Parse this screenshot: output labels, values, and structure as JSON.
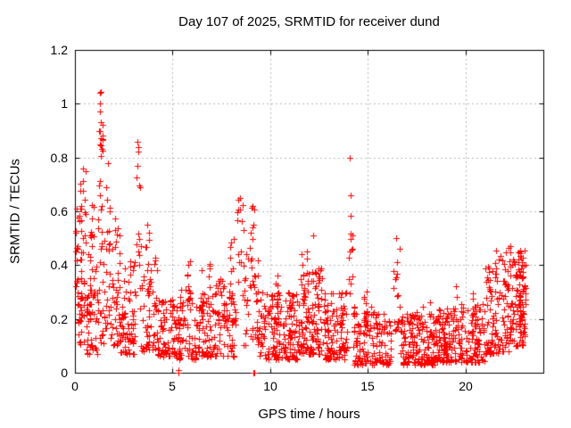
{
  "figure": {
    "background": "#ffffff",
    "text_color": "#000000"
  },
  "chart_data": {
    "type": "scatter",
    "title": "Day 107 of 2025, SRMTID for receiver dund",
    "xlabel": "GPS time / hours",
    "ylabel": "SRMTID / TECUs",
    "xlim": [
      0,
      24
    ],
    "ylim": [
      0,
      1.2
    ],
    "xticks": [
      0,
      5,
      10,
      15,
      20
    ],
    "xtick_labels": [
      "0",
      "5",
      "10",
      "15",
      "20"
    ],
    "yticks": [
      0,
      0.2,
      0.4,
      0.6,
      0.8,
      1,
      1.2
    ],
    "ytick_labels": [
      "0",
      "0.2",
      "0.4",
      "0.6",
      "0.8",
      "1",
      "1.2"
    ],
    "grid": true,
    "grid_style": "dashed",
    "grid_color": "#b9b9b9",
    "frame_color": "#000000",
    "legend": "none",
    "marker": {
      "shape": "plus",
      "color": "#ff0000",
      "size": 7
    },
    "x_data_range": [
      0.05,
      23.1
    ],
    "notable_points": [
      [
        0.42,
        0.76
      ],
      [
        1.28,
        1.04
      ],
      [
        1.3,
        1.0
      ],
      [
        1.29,
        0.97
      ],
      [
        1.34,
        0.93
      ],
      [
        1.27,
        0.9
      ],
      [
        1.4,
        0.87
      ],
      [
        1.68,
        0.78
      ],
      [
        3.22,
        0.86
      ],
      [
        3.26,
        0.84
      ],
      [
        5.28,
        0.0
      ],
      [
        5.32,
        0.01
      ],
      [
        8.45,
        0.65
      ],
      [
        9.13,
        0.0
      ],
      [
        9.19,
        0.0
      ],
      [
        12.2,
        0.51
      ],
      [
        14.1,
        0.8
      ],
      [
        14.12,
        0.66
      ],
      [
        16.45,
        0.5
      ],
      [
        22.3,
        0.47
      ]
    ],
    "density_clusters": [
      [
        0.05,
        0.35,
        0.18,
        0.66,
        28,
        1.0
      ],
      [
        0.28,
        0.55,
        0.2,
        0.77,
        22,
        0.9
      ],
      [
        0.15,
        0.7,
        0.08,
        0.3,
        30,
        1.2
      ],
      [
        0.6,
        1.15,
        0.07,
        0.45,
        45,
        1.5
      ],
      [
        0.75,
        0.95,
        0.3,
        0.66,
        12,
        1.0
      ],
      [
        1.2,
        1.45,
        0.5,
        1.05,
        20,
        1.3
      ],
      [
        1.15,
        1.55,
        0.1,
        0.5,
        25,
        1.3
      ],
      [
        1.55,
        1.8,
        0.15,
        0.78,
        20,
        1.4
      ],
      [
        1.8,
        2.3,
        0.1,
        0.62,
        45,
        1.8
      ],
      [
        2.3,
        3.1,
        0.07,
        0.42,
        70,
        1.7
      ],
      [
        3.15,
        3.35,
        0.3,
        0.86,
        12,
        1.1
      ],
      [
        3.35,
        4.2,
        0.08,
        0.5,
        55,
        1.9
      ],
      [
        3.6,
        3.9,
        0.3,
        0.58,
        10,
        1.0
      ],
      [
        4.2,
        5.2,
        0.06,
        0.28,
        75,
        1.6
      ],
      [
        5.2,
        6.2,
        0.05,
        0.32,
        70,
        1.6
      ],
      [
        5.75,
        5.95,
        0.25,
        0.46,
        8,
        1.0
      ],
      [
        6.2,
        7.2,
        0.06,
        0.3,
        70,
        1.5
      ],
      [
        6.45,
        6.6,
        0.2,
        0.4,
        7,
        1.0
      ],
      [
        6.85,
        7.0,
        0.2,
        0.42,
        7,
        1.0
      ],
      [
        7.2,
        8.2,
        0.06,
        0.35,
        70,
        1.5
      ],
      [
        7.9,
        8.25,
        0.15,
        0.5,
        15,
        1.2
      ],
      [
        8.3,
        8.65,
        0.3,
        0.65,
        14,
        1.1
      ],
      [
        8.6,
        9.4,
        0.1,
        0.45,
        40,
        1.5
      ],
      [
        8.9,
        9.25,
        0.35,
        0.62,
        10,
        1.0
      ],
      [
        9.4,
        11.4,
        0.05,
        0.3,
        160,
        1.7
      ],
      [
        10.3,
        10.5,
        0.2,
        0.38,
        8,
        1.0
      ],
      [
        11.4,
        12.7,
        0.07,
        0.4,
        110,
        1.7
      ],
      [
        11.6,
        11.95,
        0.25,
        0.46,
        12,
        1.0
      ],
      [
        12.4,
        12.65,
        0.2,
        0.42,
        10,
        1.0
      ],
      [
        12.7,
        13.95,
        0.05,
        0.3,
        110,
        1.6
      ],
      [
        14.05,
        14.25,
        0.25,
        0.67,
        12,
        1.2
      ],
      [
        14.25,
        16.2,
        0.03,
        0.25,
        140,
        1.7
      ],
      [
        14.75,
        15.0,
        0.15,
        0.32,
        10,
        1.0
      ],
      [
        16.3,
        16.7,
        0.15,
        0.5,
        20,
        1.3
      ],
      [
        16.7,
        18.5,
        0.03,
        0.22,
        150,
        1.5
      ],
      [
        17.2,
        18.4,
        0.15,
        0.28,
        12,
        1.0
      ],
      [
        18.5,
        19.7,
        0.04,
        0.24,
        115,
        1.6
      ],
      [
        19.35,
        19.6,
        0.15,
        0.35,
        10,
        1.0
      ],
      [
        19.7,
        21.0,
        0.04,
        0.26,
        105,
        1.6
      ],
      [
        20.3,
        20.55,
        0.15,
        0.3,
        8,
        1.0
      ],
      [
        21.0,
        21.7,
        0.07,
        0.46,
        55,
        1.8
      ],
      [
        21.15,
        21.25,
        0.28,
        0.4,
        5,
        1.0
      ],
      [
        21.5,
        21.6,
        0.3,
        0.44,
        6,
        1.0
      ],
      [
        21.7,
        22.4,
        0.08,
        0.47,
        60,
        1.7
      ],
      [
        22.4,
        23.1,
        0.1,
        0.46,
        85,
        1.4
      ],
      [
        22.75,
        23.0,
        0.15,
        0.42,
        25,
        1.0
      ]
    ],
    "seed": 107
  }
}
